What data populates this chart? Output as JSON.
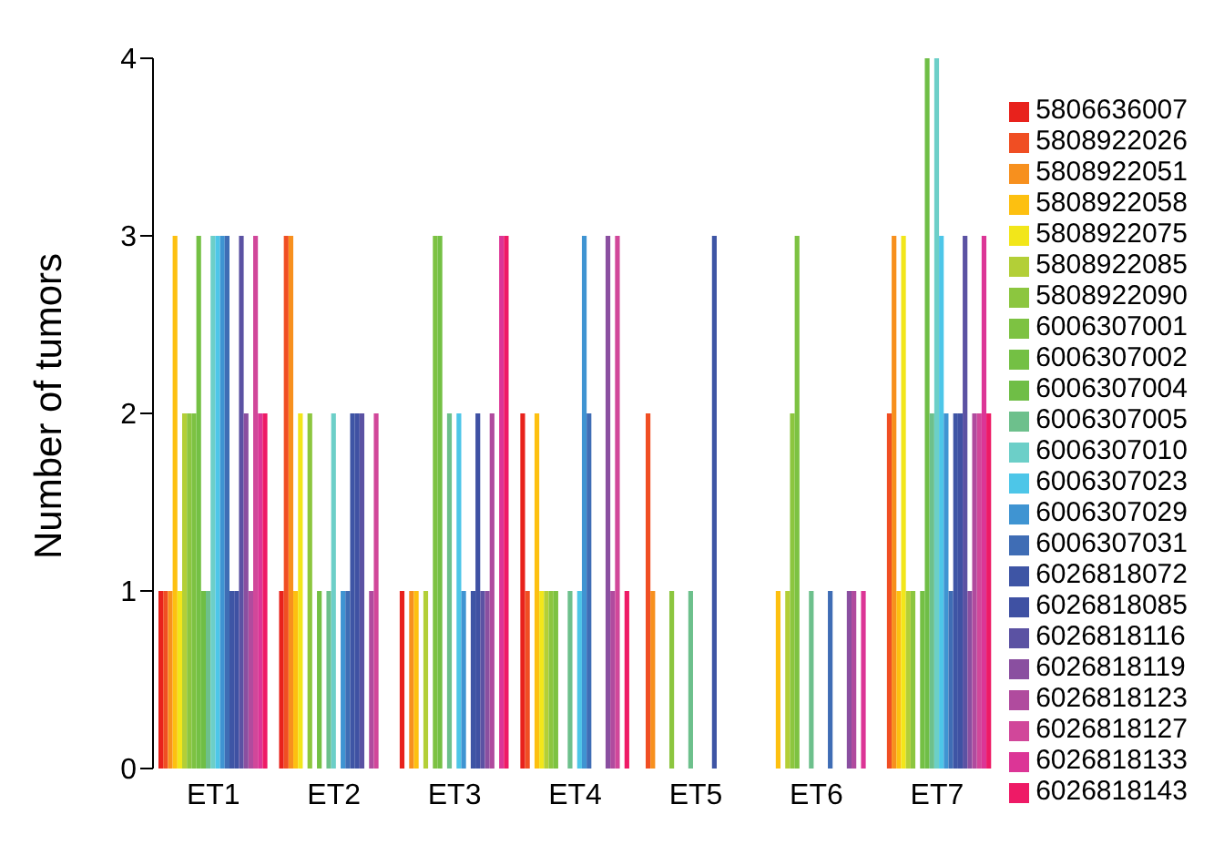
{
  "chart_data": {
    "type": "bar",
    "ylabel": "Number of tumors",
    "categories": [
      "ET1",
      "ET2",
      "ET3",
      "ET4",
      "ET5",
      "ET6",
      "ET7"
    ],
    "ylim": [
      0,
      4
    ],
    "yticks": [
      0,
      1,
      2,
      3,
      4
    ],
    "grid": false,
    "legend": "right",
    "series": [
      {
        "name": "5806636007",
        "color": "#e8221c",
        "values": [
          1,
          1,
          1,
          2,
          0,
          0,
          0
        ]
      },
      {
        "name": "5808922026",
        "color": "#f04e23",
        "values": [
          1,
          3,
          0,
          1,
          2,
          0,
          2
        ]
      },
      {
        "name": "5808922051",
        "color": "#f7901e",
        "values": [
          1,
          3,
          1,
          0,
          1,
          0,
          3
        ]
      },
      {
        "name": "5808922058",
        "color": "#fdc010",
        "values": [
          3,
          1,
          1,
          2,
          0,
          1,
          1
        ]
      },
      {
        "name": "5808922075",
        "color": "#f2e61a",
        "values": [
          1,
          2,
          0,
          1,
          0,
          0,
          3
        ]
      },
      {
        "name": "5808922085",
        "color": "#b3cf37",
        "values": [
          2,
          0,
          1,
          1,
          0,
          1,
          1
        ]
      },
      {
        "name": "5808922090",
        "color": "#8cc63f",
        "values": [
          2,
          2,
          0,
          1,
          1,
          2,
          1
        ]
      },
      {
        "name": "6006307001",
        "color": "#7dc242",
        "values": [
          2,
          0,
          3,
          1,
          0,
          3,
          0
        ]
      },
      {
        "name": "6006307002",
        "color": "#74c044",
        "values": [
          3,
          1,
          3,
          0,
          0,
          0,
          1
        ]
      },
      {
        "name": "6006307004",
        "color": "#6fbe46",
        "values": [
          1,
          0,
          0,
          0,
          0,
          0,
          4
        ]
      },
      {
        "name": "6006307005",
        "color": "#6dc08c",
        "values": [
          1,
          1,
          2,
          1,
          1,
          1,
          2
        ]
      },
      {
        "name": "6006307010",
        "color": "#6ccfc8",
        "values": [
          3,
          2,
          0,
          0,
          0,
          0,
          4
        ]
      },
      {
        "name": "6006307023",
        "color": "#4dc6e8",
        "values": [
          3,
          0,
          2,
          1,
          0,
          0,
          3
        ]
      },
      {
        "name": "6006307029",
        "color": "#3f94d2",
        "values": [
          3,
          1,
          1,
          3,
          0,
          0,
          2
        ]
      },
      {
        "name": "6006307031",
        "color": "#3f6db5",
        "values": [
          3,
          1,
          0,
          2,
          0,
          1,
          1
        ]
      },
      {
        "name": "6026818072",
        "color": "#3e55a5",
        "values": [
          1,
          2,
          1,
          0,
          3,
          0,
          2
        ]
      },
      {
        "name": "6026818085",
        "color": "#3f51a3",
        "values": [
          1,
          2,
          2,
          0,
          0,
          0,
          2
        ]
      },
      {
        "name": "6026818116",
        "color": "#5b52a3",
        "values": [
          3,
          2,
          1,
          0,
          0,
          0,
          3
        ]
      },
      {
        "name": "6026818119",
        "color": "#8a4fa0",
        "values": [
          2,
          0,
          1,
          3,
          0,
          1,
          1
        ]
      },
      {
        "name": "6026818123",
        "color": "#b04b9e",
        "values": [
          1,
          1,
          2,
          1,
          0,
          1,
          2
        ]
      },
      {
        "name": "6026818127",
        "color": "#d1479a",
        "values": [
          3,
          2,
          0,
          3,
          0,
          0,
          2
        ]
      },
      {
        "name": "6026818133",
        "color": "#dc3596",
        "values": [
          2,
          0,
          3,
          0,
          0,
          1,
          3
        ]
      },
      {
        "name": "6026818143",
        "color": "#ee1a66",
        "values": [
          2,
          0,
          3,
          1,
          0,
          0,
          2
        ]
      }
    ]
  }
}
